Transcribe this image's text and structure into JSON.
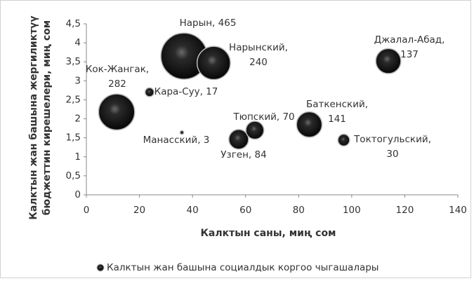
{
  "chart_data": {
    "type": "bubble",
    "xlabel": "Калктын саны, миң сом",
    "ylabel": "Калктын жан башына жергиликтүү\nбюджеттин кирешелери, миң сом",
    "xlim": [
      0,
      140
    ],
    "xticks": [
      0,
      20,
      40,
      60,
      80,
      100,
      120,
      140
    ],
    "ylim": [
      0,
      4.5
    ],
    "yticks": [
      0,
      {
        "value": 0.5,
        "label": "0,5"
      },
      1,
      {
        "value": 1.5,
        "label": "1,5"
      },
      2,
      {
        "value": 2.5,
        "label": "2,5"
      },
      3,
      {
        "value": 3.5,
        "label": "3,5"
      },
      4,
      {
        "value": 4.5,
        "label": "4,5"
      }
    ],
    "legend": "bottom",
    "series": [
      {
        "name": "Калктын жан башына социалдык коргоо чыгашалары",
        "color": "#1a1a1a",
        "x": [
          36.8,
          48,
          11.4,
          23.8,
          36,
          57.4,
          63.5,
          84,
          97,
          113.8
        ],
        "values": [
          3.65,
          3.47,
          2.18,
          2.7,
          1.64,
          1.46,
          1.7,
          1.85,
          1.44,
          3.52
        ],
        "sizes": [
          465,
          240,
          282,
          17,
          3,
          84,
          70,
          141,
          30,
          137
        ],
        "labels": [
          "Нарын, 465",
          "Нарынский,\n240",
          "Кок-Жангак,\n282",
          "Кара-Суу, 17",
          "Манасский, 3",
          "Узген, 84",
          "Тюпский, 70",
          "Баткенский,\n141",
          "Токтогульский,\n30",
          "Джалал-Абад,\n137"
        ]
      }
    ]
  }
}
